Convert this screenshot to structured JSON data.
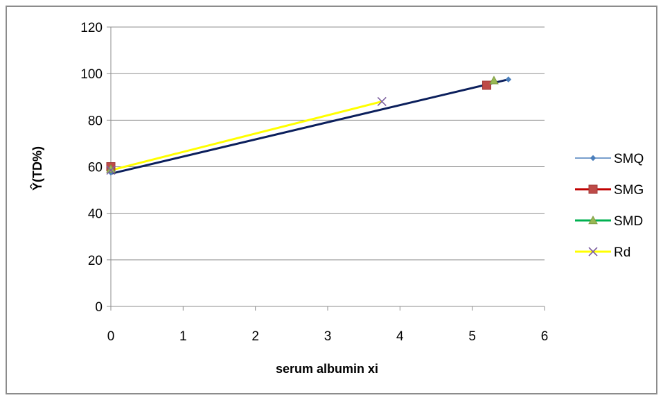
{
  "chart_data": {
    "type": "scatter",
    "title": "",
    "xlabel": "serum albumin xi",
    "ylabel": "Ŷ(TD%)",
    "xlim": [
      0,
      6
    ],
    "ylim": [
      0,
      120
    ],
    "xticks": [
      "0",
      "1",
      "2",
      "3",
      "4",
      "5",
      "6"
    ],
    "yticks": [
      "0",
      "20",
      "40",
      "60",
      "80",
      "100",
      "120"
    ],
    "grid": "horizontal",
    "legend_position": "right",
    "series": [
      {
        "name": "SMQ",
        "color": "#4a7ebb",
        "marker": "diamond",
        "points": [
          [
            0,
            57.5
          ],
          [
            5.5,
            97.5
          ]
        ]
      },
      {
        "name": "SMG",
        "color": "#be4b48",
        "marker": "square",
        "points": [
          [
            0,
            60
          ],
          [
            5.2,
            95
          ]
        ]
      },
      {
        "name": "SMD",
        "color": "#98b954",
        "marker": "triangle",
        "points": [
          [
            0,
            59
          ],
          [
            5.3,
            97
          ]
        ]
      },
      {
        "name": "Rd",
        "color": "#7d60a0",
        "marker": "x",
        "points": [
          [
            0,
            58.5
          ],
          [
            3.75,
            88
          ]
        ]
      }
    ],
    "fit_lines": [
      {
        "color": "#ffff00",
        "points": [
          [
            0,
            58.5
          ],
          [
            3.75,
            88
          ]
        ]
      },
      {
        "color": "#0b1f5c",
        "points": [
          [
            0,
            57
          ],
          [
            5.5,
            97.5
          ]
        ]
      }
    ],
    "legend_line_colors": {
      "SMQ": "#4a7ebb",
      "SMG": "#c00000",
      "SMD": "#00b050",
      "Rd": "#ffff00"
    }
  }
}
